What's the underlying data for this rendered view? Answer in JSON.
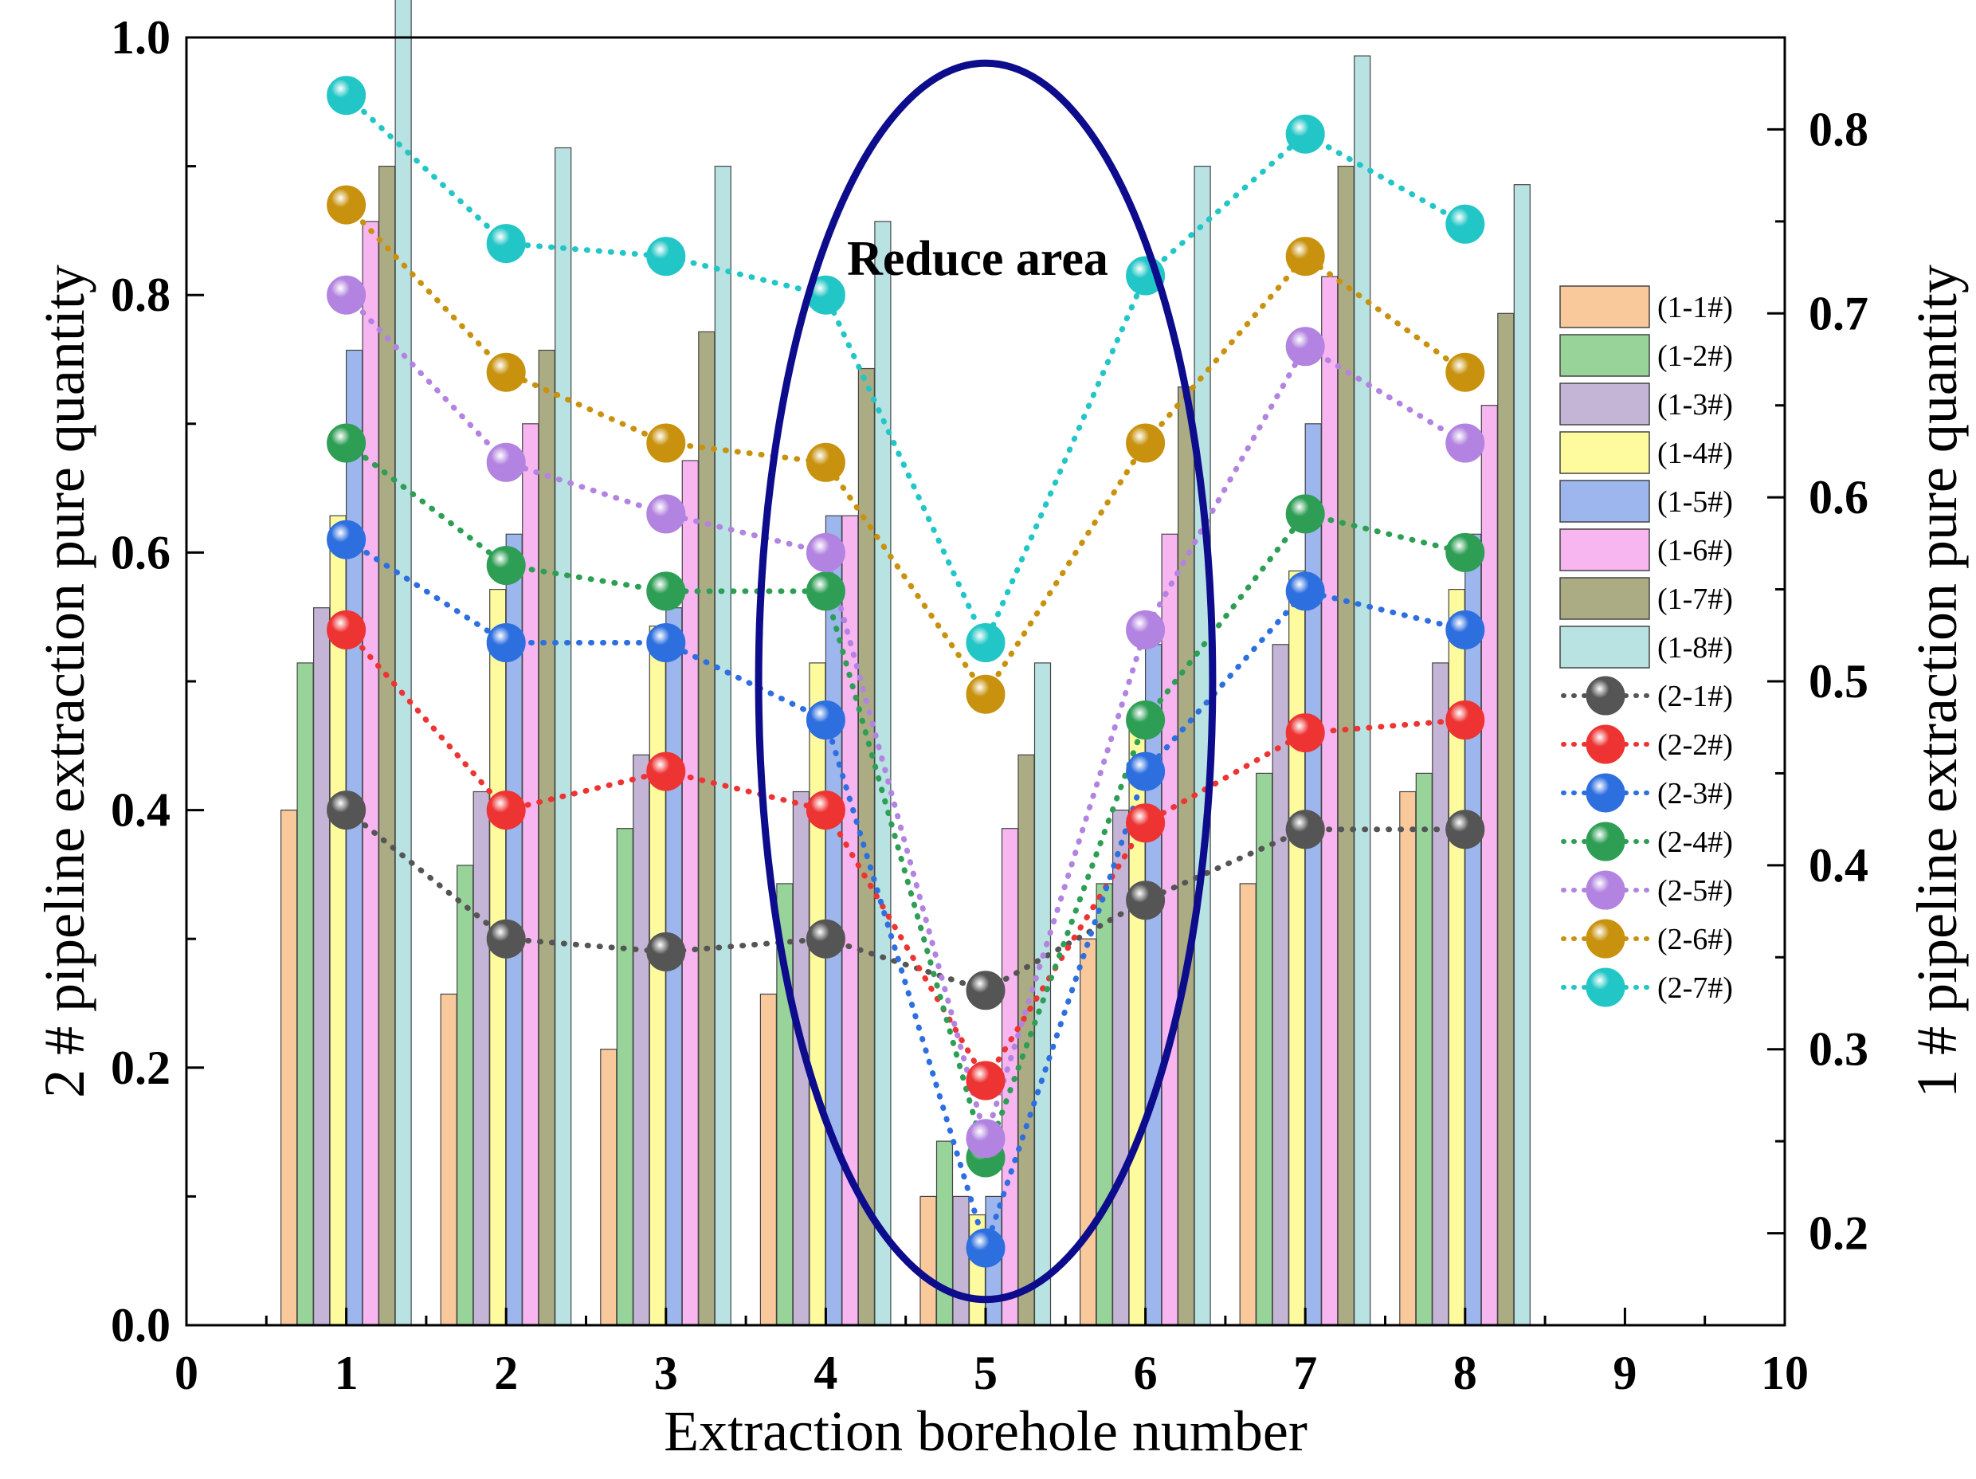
{
  "chart_data": {
    "type": "bar+line",
    "title": "",
    "xlabel": "Extraction borehole number",
    "ylabel_left": "2 # pipeline extraction pure quantity",
    "ylabel_right": "1 # pipeline extraction pure quantity",
    "xlim": [
      0,
      10
    ],
    "ylim_left": [
      0.0,
      1.0
    ],
    "ylim_right": [
      0.15,
      0.85
    ],
    "x_ticks": [
      "0",
      "1",
      "2",
      "3",
      "4",
      "5",
      "6",
      "7",
      "8",
      "9",
      "10"
    ],
    "y_left_ticks": [
      "0.0",
      "0.2",
      "0.4",
      "0.6",
      "0.8",
      "1.0"
    ],
    "y_right_ticks": [
      "0.2",
      "0.3",
      "0.4",
      "0.5",
      "0.6",
      "0.7",
      "0.8"
    ],
    "categories": [
      1,
      2,
      3,
      4,
      5,
      6,
      7,
      8
    ],
    "bar_series": [
      {
        "name": "(1-1#)",
        "color": "#F9C89B",
        "values": [
          0.43,
          0.33,
          0.3,
          0.33,
          0.22,
          0.36,
          0.39,
          0.44
        ]
      },
      {
        "name": "(1-2#)",
        "color": "#98D49A",
        "values": [
          0.51,
          0.4,
          0.42,
          0.39,
          0.25,
          0.39,
          0.45,
          0.45
        ]
      },
      {
        "name": "(1-3#)",
        "color": "#C4B5D6",
        "values": [
          0.54,
          0.44,
          0.46,
          0.44,
          0.22,
          0.43,
          0.52,
          0.51
        ]
      },
      {
        "name": "(1-4#)",
        "color": "#FDFB9E",
        "values": [
          0.59,
          0.55,
          0.53,
          0.51,
          0.21,
          0.48,
          0.56,
          0.55
        ]
      },
      {
        "name": "(1-5#)",
        "color": "#9DB7EE",
        "values": [
          0.68,
          0.58,
          0.54,
          0.59,
          0.22,
          0.52,
          0.64,
          0.58
        ]
      },
      {
        "name": "(1-6#)",
        "color": "#F8B6F0",
        "values": [
          0.75,
          0.64,
          0.62,
          0.59,
          0.42,
          0.58,
          0.72,
          0.65
        ]
      },
      {
        "name": "(1-7#)",
        "color": "#ACAC84",
        "values": [
          0.78,
          0.68,
          0.69,
          0.67,
          0.46,
          0.66,
          0.78,
          0.7
        ]
      },
      {
        "name": "(1-8#)",
        "color": "#B9E2E3",
        "values": [
          0.88,
          0.79,
          0.78,
          0.75,
          0.51,
          0.78,
          0.84,
          0.77
        ]
      }
    ],
    "line_series": [
      {
        "name": "(2-1#)",
        "color": "#555555",
        "values": [
          0.4,
          0.3,
          0.29,
          0.3,
          0.26,
          0.33,
          0.385,
          0.385
        ]
      },
      {
        "name": "(2-2#)",
        "color": "#EE3333",
        "values": [
          0.54,
          0.4,
          0.43,
          0.4,
          0.19,
          0.39,
          0.46,
          0.47
        ]
      },
      {
        "name": "(2-3#)",
        "color": "#2E6FE0",
        "values": [
          0.61,
          0.53,
          0.53,
          0.47,
          0.06,
          0.43,
          0.57,
          0.54
        ]
      },
      {
        "name": "(2-4#)",
        "color": "#2E9E55",
        "values": [
          0.685,
          0.59,
          0.57,
          0.57,
          0.13,
          0.47,
          0.63,
          0.6
        ]
      },
      {
        "name": "(2-5#)",
        "color": "#B283E0",
        "values": [
          0.8,
          0.67,
          0.63,
          0.6,
          0.145,
          0.54,
          0.76,
          0.685
        ]
      },
      {
        "name": "(2-6#)",
        "color": "#C8920E",
        "values": [
          0.87,
          0.74,
          0.685,
          0.67,
          0.49,
          0.685,
          0.83,
          0.74
        ]
      },
      {
        "name": "(2-7#)",
        "color": "#22C6C6",
        "values": [
          0.955,
          0.84,
          0.83,
          0.8,
          0.53,
          0.815,
          0.925,
          0.855
        ]
      }
    ],
    "annotations": [
      {
        "text": "Reduce area",
        "shape": "ellipse",
        "color": "#0D0C8C",
        "center_x": 5.0,
        "center_y": 0.5,
        "half_width_x": 1.42,
        "half_height_y": 0.48
      }
    ],
    "legend": "right"
  }
}
